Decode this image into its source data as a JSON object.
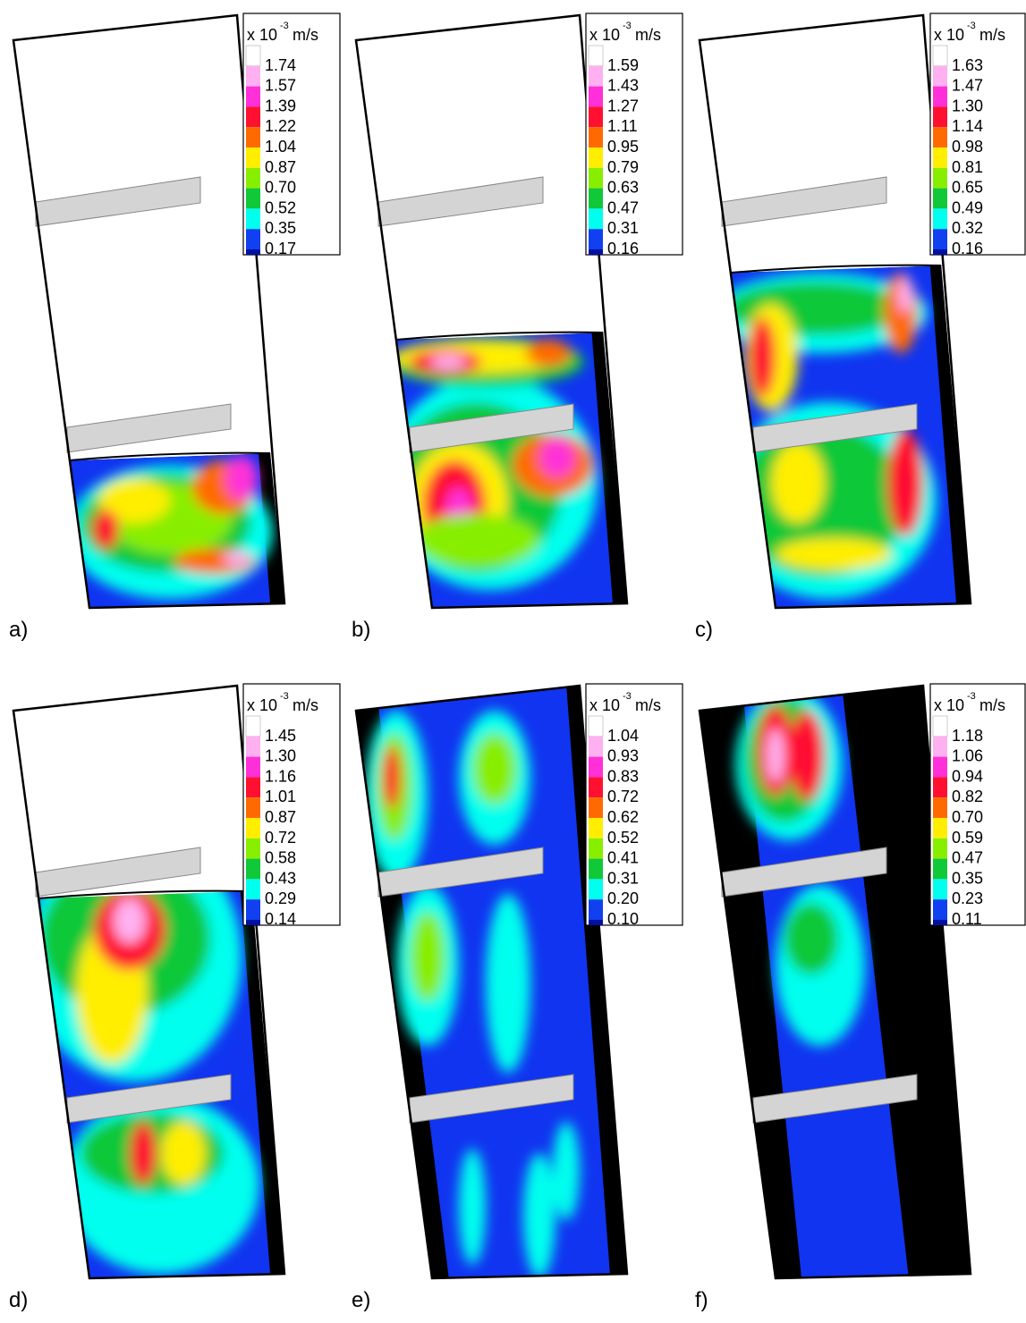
{
  "legend_unit": {
    "prefix": "x 10",
    "exponent": "-3",
    "unit": "m/s"
  },
  "panels": [
    {
      "label": "a)",
      "levels": [
        "1.74",
        "1.57",
        "1.39",
        "1.22",
        "1.04",
        "0.87",
        "0.70",
        "0.52",
        "0.35",
        "0.17"
      ]
    },
    {
      "label": "b)",
      "levels": [
        "1.59",
        "1.43",
        "1.27",
        "1.11",
        "0.95",
        "0.79",
        "0.63",
        "0.47",
        "0.31",
        "0.16"
      ]
    },
    {
      "label": "c)",
      "levels": [
        "1.63",
        "1.47",
        "1.30",
        "1.14",
        "0.98",
        "0.81",
        "0.65",
        "0.49",
        "0.32",
        "0.16"
      ]
    },
    {
      "label": "d)",
      "levels": [
        "1.45",
        "1.30",
        "1.16",
        "1.01",
        "0.87",
        "0.72",
        "0.58",
        "0.43",
        "0.29",
        "0.14"
      ]
    },
    {
      "label": "e)",
      "levels": [
        "1.04",
        "0.93",
        "0.83",
        "0.72",
        "0.62",
        "0.52",
        "0.41",
        "0.31",
        "0.20",
        "0.10"
      ]
    },
    {
      "label": "f)",
      "levels": [
        "1.18",
        "1.06",
        "0.94",
        "0.82",
        "0.70",
        "0.59",
        "0.47",
        "0.35",
        "0.23",
        "0.11"
      ]
    }
  ]
}
